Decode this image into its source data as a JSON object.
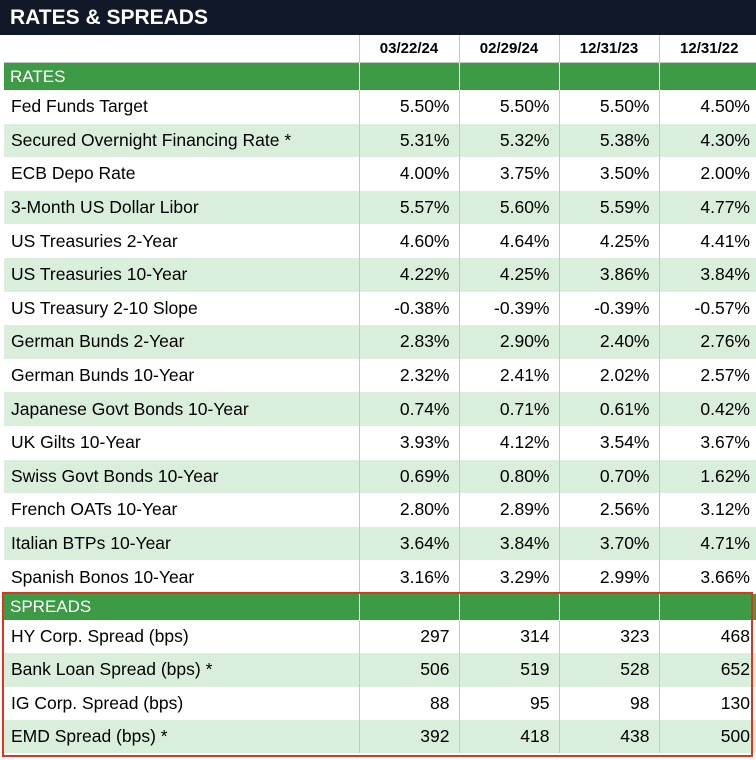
{
  "title": "RATES & SPREADS",
  "columns": [
    "03/22/24",
    "02/29/24",
    "12/31/23",
    "12/31/22"
  ],
  "sections": [
    {
      "name": "RATES",
      "rows": [
        {
          "label": "Fed Funds Target",
          "values": [
            "5.50%",
            "5.50%",
            "5.50%",
            "4.50%"
          ]
        },
        {
          "label": "Secured Overnight Financing Rate *",
          "values": [
            "5.31%",
            "5.32%",
            "5.38%",
            "4.30%"
          ]
        },
        {
          "label": "ECB Depo Rate",
          "values": [
            "4.00%",
            "3.75%",
            "3.50%",
            "2.00%"
          ]
        },
        {
          "label": "3-Month US Dollar Libor",
          "values": [
            "5.57%",
            "5.60%",
            "5.59%",
            "4.77%"
          ]
        },
        {
          "label": "US Treasuries 2-Year",
          "values": [
            "4.60%",
            "4.64%",
            "4.25%",
            "4.41%"
          ]
        },
        {
          "label": "US Treasuries 10-Year",
          "values": [
            "4.22%",
            "4.25%",
            "3.86%",
            "3.84%"
          ]
        },
        {
          "label": "US Treasury 2-10 Slope",
          "values": [
            "-0.38%",
            "-0.39%",
            "-0.39%",
            "-0.57%"
          ]
        },
        {
          "label": "German Bunds 2-Year",
          "values": [
            "2.83%",
            "2.90%",
            "2.40%",
            "2.76%"
          ]
        },
        {
          "label": "German Bunds 10-Year",
          "values": [
            "2.32%",
            "2.41%",
            "2.02%",
            "2.57%"
          ]
        },
        {
          "label": "Japanese Govt Bonds 10-Year",
          "values": [
            "0.74%",
            "0.71%",
            "0.61%",
            "0.42%"
          ]
        },
        {
          "label": "UK Gilts 10-Year",
          "values": [
            "3.93%",
            "4.12%",
            "3.54%",
            "3.67%"
          ]
        },
        {
          "label": "Swiss Govt Bonds 10-Year",
          "values": [
            "0.69%",
            "0.80%",
            "0.70%",
            "1.62%"
          ]
        },
        {
          "label": "French OATs 10-Year",
          "values": [
            "2.80%",
            "2.89%",
            "2.56%",
            "3.12%"
          ]
        },
        {
          "label": "Italian BTPs 10-Year",
          "values": [
            "3.64%",
            "3.84%",
            "3.70%",
            "4.71%"
          ]
        },
        {
          "label": "Spanish Bonos 10-Year",
          "values": [
            "3.16%",
            "3.29%",
            "2.99%",
            "3.66%"
          ]
        }
      ]
    },
    {
      "name": "SPREADS",
      "rows": [
        {
          "label": "HY Corp. Spread (bps)",
          "values": [
            "297",
            "314",
            "323",
            "468"
          ]
        },
        {
          "label": "Bank Loan Spread (bps) *",
          "values": [
            "506",
            "519",
            "528",
            "652"
          ]
        },
        {
          "label": "IG Corp. Spread (bps)",
          "values": [
            "88",
            "95",
            "98",
            "130"
          ]
        },
        {
          "label": "EMD Spread (bps) *",
          "values": [
            "392",
            "418",
            "438",
            "500"
          ]
        }
      ]
    }
  ],
  "colors": {
    "header_bg": "#111827",
    "section_green": "#3d9a45",
    "alt_row": "#daeedc",
    "highlight_border": "#e4321f"
  }
}
